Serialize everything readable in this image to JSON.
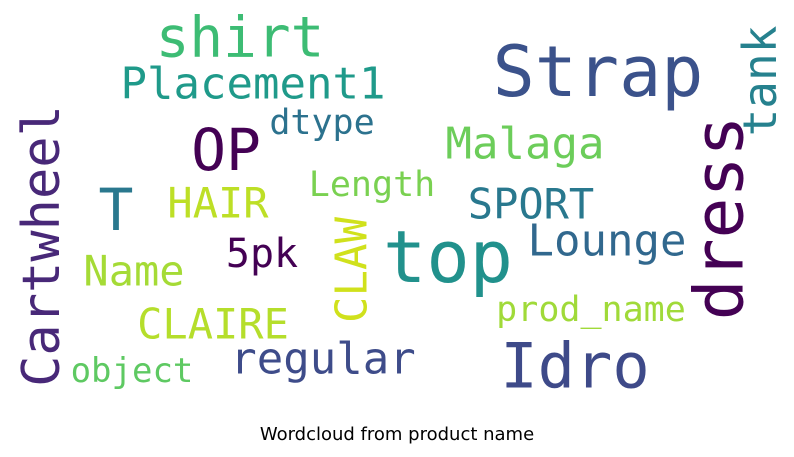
{
  "chart_data": {
    "type": "wordcloud",
    "title": "Wordcloud from product name",
    "colormap": "viridis",
    "background": "#ffffff",
    "words": [
      {
        "text": "top",
        "weight": 1.0,
        "color": "#21918c",
        "rotate": 0
      },
      {
        "text": "Strap",
        "weight": 0.97,
        "color": "#3b528b",
        "rotate": 0
      },
      {
        "text": "dress",
        "weight": 0.95,
        "color": "#440154",
        "rotate": 270
      },
      {
        "text": "Idro",
        "weight": 0.88,
        "color": "#3e4a89",
        "rotate": 0
      },
      {
        "text": "OP",
        "weight": 0.8,
        "color": "#440154",
        "rotate": 0
      },
      {
        "text": "T",
        "weight": 0.8,
        "color": "#2a788e",
        "rotate": 0
      },
      {
        "text": "shirt",
        "weight": 0.78,
        "color": "#3dbc74",
        "rotate": 0
      },
      {
        "text": "Cartwheel",
        "weight": 0.72,
        "color": "#482878",
        "rotate": 270
      },
      {
        "text": "tank",
        "weight": 0.64,
        "color": "#26818e",
        "rotate": 270
      },
      {
        "text": "Lounge",
        "weight": 0.62,
        "color": "#31688e",
        "rotate": 0
      },
      {
        "text": "CLAW",
        "weight": 0.6,
        "color": "#d0e11c",
        "rotate": 270
      },
      {
        "text": "Placement1",
        "weight": 0.6,
        "color": "#1f9a8a",
        "rotate": 0
      },
      {
        "text": "regular",
        "weight": 0.6,
        "color": "#3e4c8a",
        "rotate": 0
      },
      {
        "text": "Malaga",
        "weight": 0.6,
        "color": "#6ccd5a",
        "rotate": 0
      },
      {
        "text": "Name",
        "weight": 0.58,
        "color": "#a5db36",
        "rotate": 0
      },
      {
        "text": "HAIR",
        "weight": 0.58,
        "color": "#bddf26",
        "rotate": 0
      },
      {
        "text": "SPORT",
        "weight": 0.58,
        "color": "#29788e",
        "rotate": 0
      },
      {
        "text": "CLAIRE",
        "weight": 0.58,
        "color": "#b5de2b",
        "rotate": 0
      },
      {
        "text": "5pk",
        "weight": 0.56,
        "color": "#440154",
        "rotate": 0
      },
      {
        "text": "Length",
        "weight": 0.48,
        "color": "#7ad151",
        "rotate": 0
      },
      {
        "text": "dtype",
        "weight": 0.48,
        "color": "#2c728e",
        "rotate": 0
      },
      {
        "text": "prod_name",
        "weight": 0.48,
        "color": "#a0da39",
        "rotate": 0
      },
      {
        "text": "object",
        "weight": 0.46,
        "color": "#5ec962",
        "rotate": 0
      }
    ]
  }
}
